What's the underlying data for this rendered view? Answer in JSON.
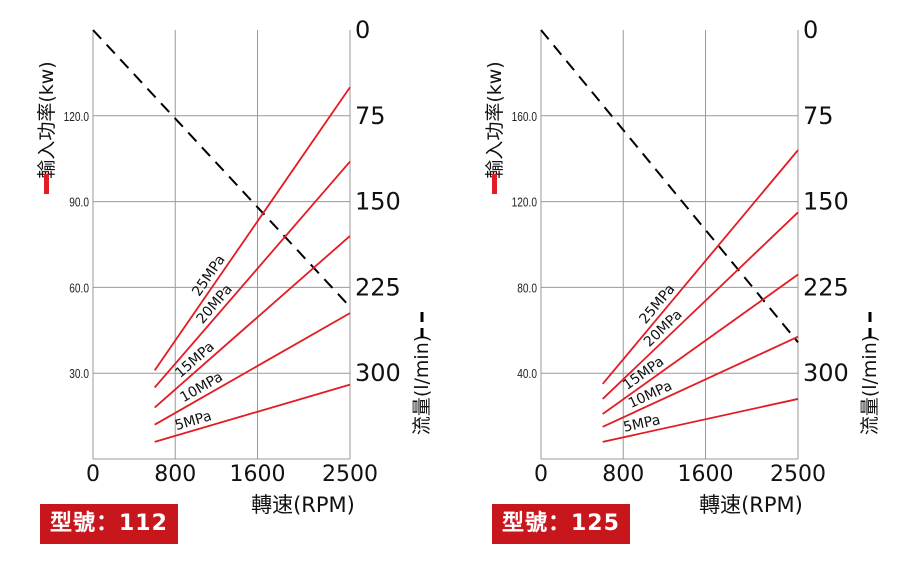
{
  "chart_data": [
    {
      "type": "line",
      "model": "型號：112",
      "xlabel": "轉速(RPM)",
      "ylabel_left": "輸入功率(kw)",
      "ylabel_right": "流量(l/min)",
      "x_ticks": [
        "0",
        "800",
        "1600",
        "2500"
      ],
      "y_left_ticks": [
        "30.0",
        "60.0",
        "90.0",
        "120.0"
      ],
      "y_right_ticks": [
        "0",
        "75",
        "150",
        "225",
        "300"
      ],
      "xlim": [
        0,
        2500
      ],
      "ylim_left": [
        0,
        150
      ],
      "ylim_right": [
        0,
        375
      ],
      "power_series": [
        {
          "name": "5MPa",
          "x": [
            600,
            2500
          ],
          "y": [
            6,
            26
          ]
        },
        {
          "name": "10MPa",
          "x": [
            600,
            2500
          ],
          "y": [
            12,
            51
          ]
        },
        {
          "name": "15MPa",
          "x": [
            600,
            2500
          ],
          "y": [
            18,
            78
          ]
        },
        {
          "name": "20MPa",
          "x": [
            600,
            2500
          ],
          "y": [
            25,
            104
          ]
        },
        {
          "name": "25MPa",
          "x": [
            600,
            2500
          ],
          "y": [
            31,
            130
          ]
        }
      ],
      "flow_series": {
        "x": [
          0,
          2500
        ],
        "y": [
          0,
          242
        ]
      },
      "colors": {
        "power": "#e31b23",
        "flow": "#000000",
        "grid": "#999999",
        "badge": "#c8161d"
      }
    },
    {
      "type": "line",
      "model": "型號：125",
      "xlabel": "轉速(RPM)",
      "ylabel_left": "輸入功率(kw)",
      "ylabel_right": "流量(l/min)",
      "x_ticks": [
        "0",
        "800",
        "1600",
        "2500"
      ],
      "y_left_ticks": [
        "40.0",
        "80.0",
        "120.0",
        "160.0"
      ],
      "y_right_ticks": [
        "0",
        "75",
        "150",
        "225",
        "300"
      ],
      "xlim": [
        0,
        2500
      ],
      "ylim_left": [
        0,
        200
      ],
      "ylim_right": [
        0,
        375
      ],
      "power_series": [
        {
          "name": "5MPa",
          "x": [
            600,
            2500
          ],
          "y": [
            8,
            28
          ]
        },
        {
          "name": "10MPa",
          "x": [
            600,
            2500
          ],
          "y": [
            15,
            57
          ]
        },
        {
          "name": "15MPa",
          "x": [
            600,
            2500
          ],
          "y": [
            21,
            86
          ]
        },
        {
          "name": "20MPa",
          "x": [
            600,
            2500
          ],
          "y": [
            28,
            115
          ]
        },
        {
          "name": "25MPa",
          "x": [
            600,
            2500
          ],
          "y": [
            35,
            144
          ]
        }
      ],
      "flow_series": {
        "x": [
          0,
          2500
        ],
        "y": [
          0,
          273
        ]
      },
      "colors": {
        "power": "#e31b23",
        "flow": "#000000",
        "grid": "#999999",
        "badge": "#c8161d"
      }
    }
  ]
}
